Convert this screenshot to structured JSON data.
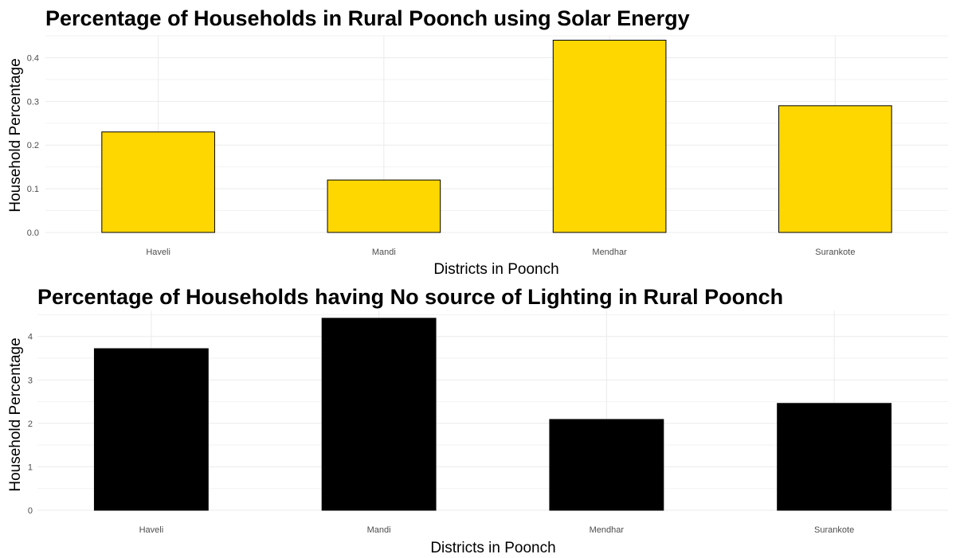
{
  "chart_data": [
    {
      "type": "bar",
      "title": "Percentage of Households in Rural Poonch using Solar Energy",
      "xlabel": "Districts in Poonch",
      "ylabel": "Household Percentage",
      "categories": [
        "Haveli",
        "Mandi",
        "Mendhar",
        "Surankote"
      ],
      "values": [
        0.23,
        0.12,
        0.44,
        0.29
      ],
      "ylim": [
        0,
        0.45
      ],
      "yticks": [
        "0.0",
        "0.1",
        "0.2",
        "0.3",
        "0.4"
      ],
      "bar_fill": "#FFD700",
      "bar_stroke": "#000000",
      "grid": true
    },
    {
      "type": "bar",
      "title": "Percentage of Households having No source of Lighting in Rural Poonch",
      "xlabel": "Districts in Poonch",
      "ylabel": "Household Percentage",
      "categories": [
        "Haveli",
        "Mandi",
        "Mendhar",
        "Surankote"
      ],
      "values": [
        3.72,
        4.42,
        2.09,
        2.46
      ],
      "ylim": [
        0,
        4.6
      ],
      "yticks": [
        "0",
        "1",
        "2",
        "3",
        "4"
      ],
      "bar_fill": "#000000",
      "bar_stroke": "#000000",
      "grid": true
    }
  ]
}
